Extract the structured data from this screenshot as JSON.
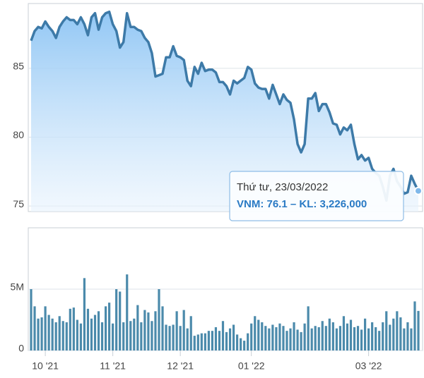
{
  "chart_data": [
    {
      "type": "area",
      "color": "#3d7aa8",
      "fill": "#8cc4f4",
      "values": [
        87.0,
        87.7,
        88.0,
        87.9,
        88.4,
        88.0,
        87.7,
        87.2,
        88.0,
        88.4,
        88.7,
        88.5,
        88.5,
        88.2,
        88.7,
        88.2,
        87.4,
        88.7,
        89.0,
        87.8,
        88.7,
        89.0,
        89.1,
        88.2,
        87.7,
        86.5,
        86.9,
        89.0,
        88.0,
        88.0,
        87.8,
        87.7,
        87.2,
        86.9,
        86.1,
        84.4,
        84.5,
        84.6,
        85.8,
        85.8,
        86.6,
        85.9,
        85.8,
        85.6,
        84.1,
        83.7,
        85.1,
        84.6,
        85.4,
        84.8,
        84.9,
        84.9,
        84.7,
        84.0,
        84.0,
        83.7,
        83.1,
        84.1,
        83.9,
        84.1,
        84.3,
        85.1,
        84.9,
        83.9,
        83.6,
        83.5,
        83.5,
        82.8,
        83.8,
        83.1,
        82.4,
        83.1,
        82.7,
        82.5,
        81.3,
        79.5,
        78.9,
        79.5,
        82.8,
        82.8,
        83.2,
        81.9,
        82.4,
        82.4,
        81.8,
        81.0,
        80.9,
        80.2,
        80.7,
        80.5,
        80.9,
        79.5,
        78.4,
        78.7,
        78.3,
        78.5,
        77.7,
        77.4,
        77.2,
        76.4,
        75.4,
        77.2,
        77.7,
        76.8,
        76.4,
        75.9,
        76.0,
        77.2,
        76.6,
        76.1
      ],
      "ylim": [
        74.6,
        89.7
      ],
      "yticks": [
        75,
        80,
        85
      ],
      "grid": true,
      "tooltip": {
        "title": "Thứ tư, 23/03/2022",
        "label": "VNM: 76.1 – KL: 3,226,000"
      }
    },
    {
      "type": "bar",
      "color": "#4b8aab",
      "categories": [
        null,
        null,
        null,
        null,
        "10 '21",
        null,
        null,
        null,
        null,
        null,
        null,
        null,
        null,
        null,
        null,
        null,
        null,
        null,
        null,
        null,
        null,
        null,
        null,
        "11 '21",
        null,
        null,
        null,
        null,
        null,
        null,
        null,
        null,
        null,
        null,
        null,
        null,
        null,
        null,
        null,
        null,
        null,
        null,
        "12 '21",
        null,
        null,
        null,
        null,
        null,
        null,
        null,
        null,
        null,
        null,
        null,
        null,
        null,
        null,
        null,
        null,
        null,
        null,
        null,
        "01 '22",
        null,
        null,
        null,
        null,
        null,
        null,
        null,
        null,
        null,
        null,
        null,
        null,
        null,
        null,
        null,
        null,
        null,
        null,
        null,
        null,
        null,
        null,
        null,
        null,
        null,
        null,
        null,
        null,
        null,
        null,
        null,
        null,
        "03 '22",
        null,
        null,
        null,
        null,
        null,
        null,
        null,
        null,
        null,
        null,
        null,
        null,
        null,
        null
      ],
      "values": [
        5000000,
        3600000,
        2600000,
        2700000,
        3600000,
        2900000,
        2600000,
        2300000,
        2800000,
        2400000,
        2300000,
        3400000,
        3500000,
        2500000,
        2200000,
        5900000,
        3400000,
        2600000,
        2900000,
        3200000,
        2300000,
        3600000,
        3900000,
        2200000,
        5000000,
        4800000,
        2300000,
        6200000,
        2400000,
        2600000,
        3700000,
        2300000,
        3300000,
        3100000,
        2400000,
        3200000,
        5000000,
        3600000,
        2100000,
        2000000,
        2100000,
        3200000,
        2000000,
        3300000,
        1800000,
        2800000,
        1200000,
        1300000,
        1400000,
        1400000,
        1600000,
        1600000,
        1900000,
        1600000,
        2400000,
        1500000,
        1800000,
        2100000,
        1300000,
        1000000,
        800000,
        1400000,
        2200000,
        2800000,
        2500000,
        2300000,
        2000000,
        1800000,
        2100000,
        1900000,
        2200000,
        2000000,
        1600000,
        1800000,
        2300000,
        1700000,
        1500000,
        2200000,
        3600000,
        1800000,
        2000000,
        1900000,
        2400000,
        2000000,
        2600000,
        2300000,
        1800000,
        2000000,
        2800000,
        2200000,
        2500000,
        1900000,
        2000000,
        1700000,
        2600000,
        1800000,
        2300000,
        1900000,
        1600000,
        2300000,
        3200000,
        2100000,
        2600000,
        3200000,
        2700000,
        1800000,
        2300000,
        1800000,
        4000000,
        3226000
      ],
      "ylim": [
        0,
        10000000
      ],
      "yticks": [
        0,
        {
          "value": 5000000,
          "label": "5M"
        }
      ],
      "grid": true
    }
  ]
}
